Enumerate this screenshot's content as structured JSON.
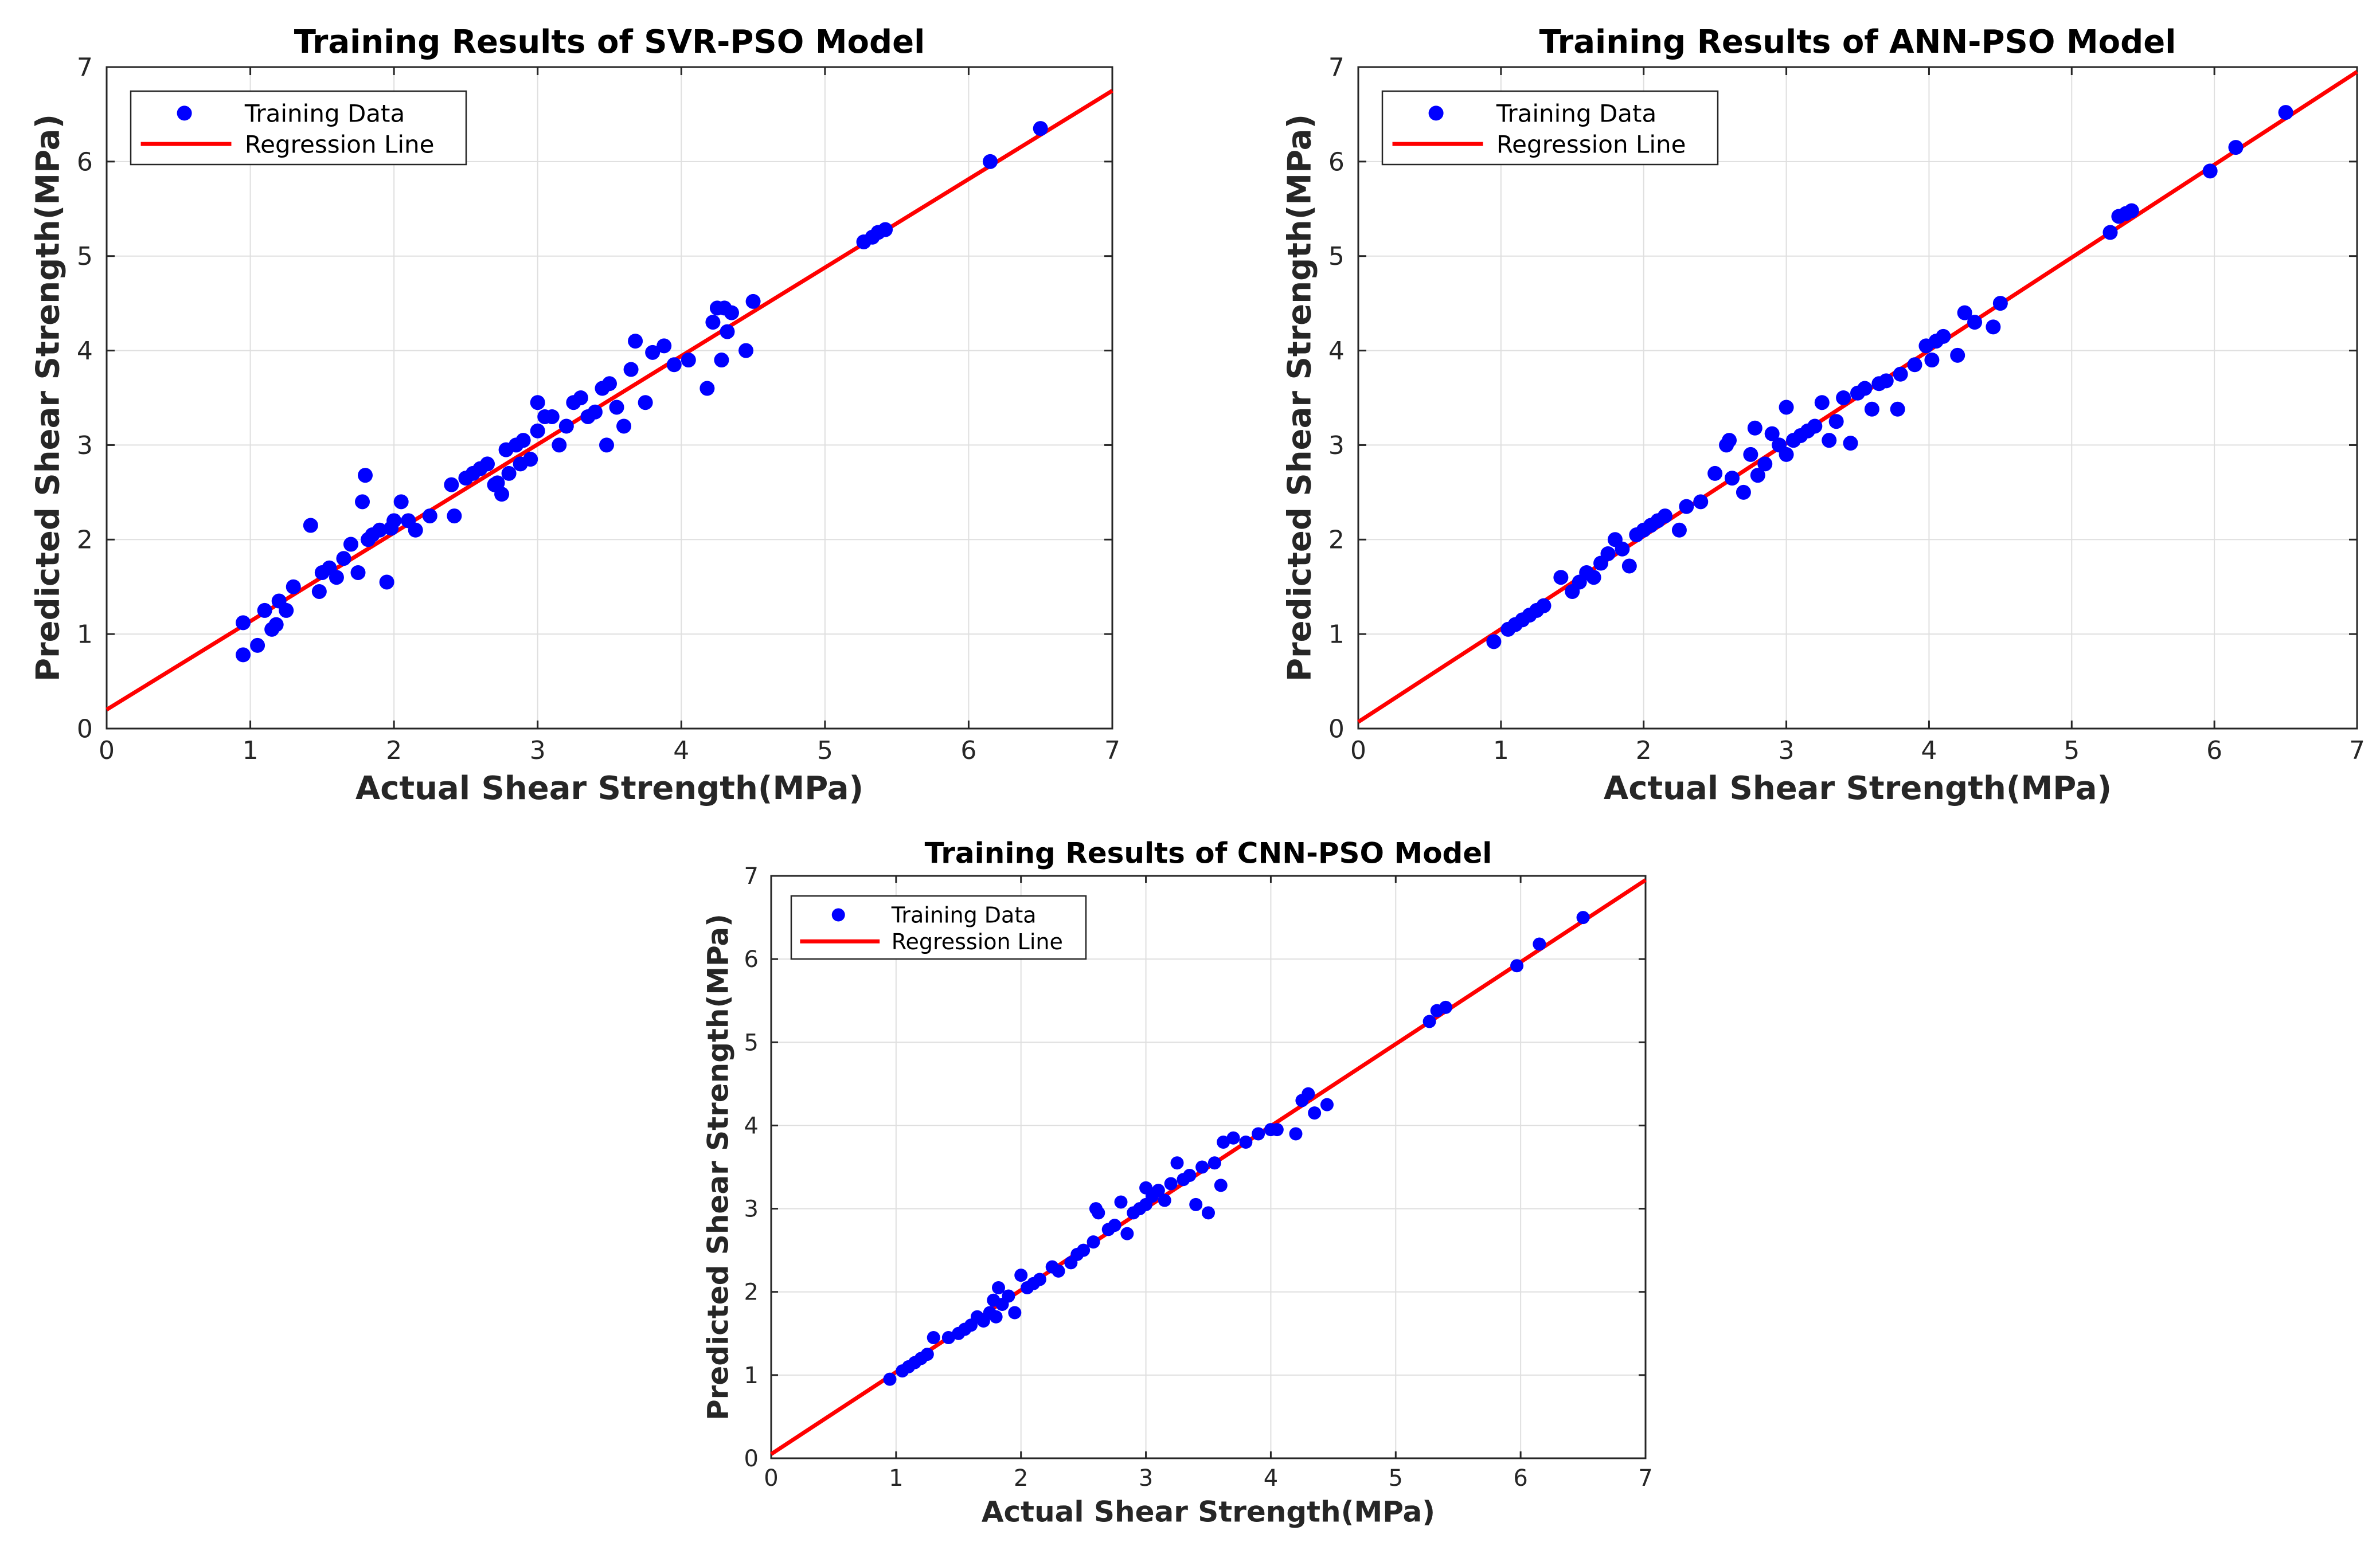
{
  "chart_data": [
    {
      "type": "scatter",
      "title": "Training Results of SVR-PSO Model",
      "xlabel": "Actual Shear Strength(MPa)",
      "ylabel": "Predicted Shear Strength(MPa)",
      "xlim": [
        0,
        7
      ],
      "ylim": [
        0,
        7
      ],
      "xticks": [
        0,
        1,
        2,
        3,
        4,
        5,
        6,
        7
      ],
      "yticks": [
        0,
        1,
        2,
        3,
        4,
        5,
        6,
        7
      ],
      "grid": true,
      "legend_position": "top-left",
      "series": [
        {
          "name": "Training Data",
          "kind": "points",
          "color": "#0000ff",
          "x": [
            0.95,
            0.95,
            1.05,
            1.1,
            1.15,
            1.18,
            1.2,
            1.25,
            1.3,
            1.42,
            1.48,
            1.5,
            1.55,
            1.6,
            1.65,
            1.7,
            1.75,
            1.78,
            1.8,
            1.82,
            1.85,
            1.9,
            1.95,
            1.98,
            2.0,
            2.05,
            2.1,
            2.15,
            2.25,
            2.4,
            2.42,
            2.5,
            2.55,
            2.6,
            2.65,
            2.7,
            2.72,
            2.75,
            2.78,
            2.8,
            2.85,
            2.88,
            2.9,
            2.95,
            3.0,
            3.0,
            3.05,
            3.1,
            3.15,
            3.2,
            3.25,
            3.3,
            3.35,
            3.4,
            3.45,
            3.48,
            3.5,
            3.55,
            3.6,
            3.65,
            3.68,
            3.75,
            3.8,
            3.88,
            3.95,
            4.05,
            4.18,
            4.22,
            4.25,
            4.28,
            4.3,
            4.32,
            4.35,
            4.45,
            4.5,
            5.27,
            5.33,
            5.37,
            5.42,
            6.15,
            6.5
          ],
          "y": [
            1.12,
            0.78,
            0.88,
            1.25,
            1.05,
            1.1,
            1.35,
            1.25,
            1.5,
            2.15,
            1.45,
            1.65,
            1.7,
            1.6,
            1.8,
            1.95,
            1.65,
            2.4,
            2.68,
            2.0,
            2.05,
            2.1,
            1.55,
            2.12,
            2.2,
            2.4,
            2.2,
            2.1,
            2.25,
            2.58,
            2.25,
            2.65,
            2.7,
            2.75,
            2.8,
            2.58,
            2.6,
            2.48,
            2.95,
            2.7,
            3.0,
            2.8,
            3.05,
            2.85,
            3.45,
            3.15,
            3.3,
            3.3,
            3.0,
            3.2,
            3.45,
            3.5,
            3.3,
            3.35,
            3.6,
            3.0,
            3.65,
            3.4,
            3.2,
            3.8,
            4.1,
            3.45,
            3.98,
            4.05,
            3.85,
            3.9,
            3.6,
            4.3,
            4.45,
            3.9,
            4.45,
            4.2,
            4.4,
            4.0,
            4.52,
            5.15,
            5.2,
            5.25,
            5.28,
            6.0,
            6.35
          ]
        },
        {
          "name": "Regression Line",
          "kind": "line",
          "color": "#ff0000",
          "x": [
            0,
            7
          ],
          "y": [
            0.2,
            6.75
          ]
        }
      ]
    },
    {
      "type": "scatter",
      "title": "Training Results of ANN-PSO Model",
      "xlabel": "Actual Shear Strength(MPa)",
      "ylabel": "Predicted Shear Strength(MPa)",
      "xlim": [
        0,
        7
      ],
      "ylim": [
        0,
        7
      ],
      "xticks": [
        0,
        1,
        2,
        3,
        4,
        5,
        6,
        7
      ],
      "yticks": [
        0,
        1,
        2,
        3,
        4,
        5,
        6,
        7
      ],
      "grid": true,
      "legend_position": "top-left",
      "series": [
        {
          "name": "Training Data",
          "kind": "points",
          "color": "#0000ff",
          "x": [
            0.95,
            1.05,
            1.1,
            1.15,
            1.2,
            1.25,
            1.3,
            1.42,
            1.5,
            1.55,
            1.6,
            1.65,
            1.7,
            1.75,
            1.8,
            1.85,
            1.9,
            1.95,
            2.0,
            2.05,
            2.1,
            2.15,
            2.25,
            2.3,
            2.4,
            2.5,
            2.58,
            2.6,
            2.62,
            2.7,
            2.75,
            2.78,
            2.8,
            2.85,
            2.9,
            2.95,
            3.0,
            3.0,
            3.05,
            3.1,
            3.15,
            3.2,
            3.25,
            3.3,
            3.35,
            3.4,
            3.45,
            3.5,
            3.55,
            3.6,
            3.65,
            3.7,
            3.78,
            3.8,
            3.9,
            3.98,
            4.02,
            4.05,
            4.1,
            4.2,
            4.25,
            4.32,
            4.45,
            4.5,
            5.27,
            5.33,
            5.38,
            5.42,
            5.97,
            6.15,
            6.5
          ],
          "y": [
            0.92,
            1.05,
            1.1,
            1.15,
            1.2,
            1.25,
            1.3,
            1.6,
            1.45,
            1.55,
            1.65,
            1.6,
            1.75,
            1.85,
            2.0,
            1.9,
            1.72,
            2.05,
            2.1,
            2.15,
            2.2,
            2.25,
            2.1,
            2.35,
            2.4,
            2.7,
            3.0,
            3.05,
            2.65,
            2.5,
            2.9,
            3.18,
            2.68,
            2.8,
            3.12,
            3.0,
            3.4,
            2.9,
            3.05,
            3.1,
            3.15,
            3.2,
            3.45,
            3.05,
            3.25,
            3.5,
            3.02,
            3.55,
            3.6,
            3.38,
            3.65,
            3.68,
            3.38,
            3.75,
            3.85,
            4.05,
            3.9,
            4.1,
            4.15,
            3.95,
            4.4,
            4.3,
            4.25,
            4.5,
            5.25,
            5.42,
            5.45,
            5.48,
            5.9,
            6.15,
            6.52
          ]
        },
        {
          "name": "Regression Line",
          "kind": "line",
          "color": "#ff0000",
          "x": [
            0,
            7
          ],
          "y": [
            0.07,
            6.95
          ]
        }
      ]
    },
    {
      "type": "scatter",
      "title": "Training Results of CNN-PSO Model",
      "xlabel": "Actual Shear Strength(MPa)",
      "ylabel": "Predicted Shear Strength(MPa)",
      "xlim": [
        0,
        7
      ],
      "ylim": [
        0,
        7
      ],
      "xticks": [
        0,
        1,
        2,
        3,
        4,
        5,
        6,
        7
      ],
      "yticks": [
        0,
        1,
        2,
        3,
        4,
        5,
        6,
        7
      ],
      "grid": true,
      "legend_position": "top-left",
      "series": [
        {
          "name": "Training Data",
          "kind": "points",
          "color": "#0000ff",
          "x": [
            0.95,
            1.05,
            1.1,
            1.15,
            1.2,
            1.25,
            1.3,
            1.42,
            1.5,
            1.55,
            1.6,
            1.65,
            1.7,
            1.75,
            1.78,
            1.8,
            1.82,
            1.85,
            1.9,
            1.95,
            2.0,
            2.05,
            2.1,
            2.15,
            2.25,
            2.3,
            2.4,
            2.45,
            2.5,
            2.58,
            2.6,
            2.62,
            2.7,
            2.75,
            2.8,
            2.85,
            2.9,
            2.95,
            3.0,
            3.0,
            3.05,
            3.1,
            3.15,
            3.2,
            3.25,
            3.3,
            3.35,
            3.4,
            3.45,
            3.5,
            3.55,
            3.6,
            3.62,
            3.7,
            3.8,
            3.9,
            4.0,
            4.05,
            4.2,
            4.25,
            4.3,
            4.35,
            4.45,
            5.27,
            5.33,
            5.4,
            5.97,
            6.15,
            6.5
          ],
          "y": [
            0.95,
            1.05,
            1.1,
            1.15,
            1.2,
            1.25,
            1.45,
            1.45,
            1.5,
            1.55,
            1.6,
            1.7,
            1.65,
            1.75,
            1.9,
            1.7,
            2.05,
            1.85,
            1.95,
            1.75,
            2.2,
            2.05,
            2.1,
            2.15,
            2.3,
            2.25,
            2.35,
            2.45,
            2.5,
            2.6,
            3.0,
            2.95,
            2.75,
            2.8,
            3.08,
            2.7,
            2.95,
            3.0,
            3.25,
            3.05,
            3.15,
            3.22,
            3.1,
            3.3,
            3.55,
            3.35,
            3.4,
            3.05,
            3.5,
            2.95,
            3.55,
            3.28,
            3.8,
            3.85,
            3.8,
            3.9,
            3.95,
            3.95,
            3.9,
            4.3,
            4.38,
            4.15,
            4.25,
            5.25,
            5.38,
            5.42,
            5.92,
            6.18,
            6.5
          ]
        },
        {
          "name": "Regression Line",
          "kind": "line",
          "color": "#ff0000",
          "x": [
            0,
            7
          ],
          "y": [
            0.05,
            6.95
          ]
        }
      ]
    }
  ]
}
